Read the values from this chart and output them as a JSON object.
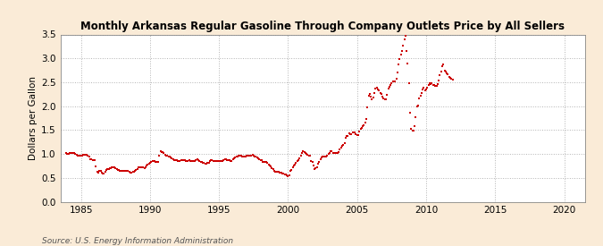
{
  "title": "Monthly Arkansas Regular Gasoline Through Company Outlets Price by All Sellers",
  "ylabel": "Dollars per Gallon",
  "source": "Source: U.S. Energy Information Administration",
  "background_color": "#faebd7",
  "plot_background": "#ffffff",
  "marker_color": "#cc0000",
  "xlim": [
    1983.5,
    2021.5
  ],
  "ylim": [
    0.0,
    3.5
  ],
  "yticks": [
    0.0,
    0.5,
    1.0,
    1.5,
    2.0,
    2.5,
    3.0,
    3.5
  ],
  "xticks": [
    1985,
    1990,
    1995,
    2000,
    2005,
    2010,
    2015,
    2020
  ],
  "data": [
    [
      1983.917,
      1.019
    ],
    [
      1984.0,
      1.009
    ],
    [
      1984.083,
      1.01
    ],
    [
      1984.167,
      1.014
    ],
    [
      1984.25,
      1.018
    ],
    [
      1984.333,
      1.025
    ],
    [
      1984.417,
      1.024
    ],
    [
      1984.5,
      1.013
    ],
    [
      1984.583,
      1.003
    ],
    [
      1984.667,
      0.983
    ],
    [
      1984.75,
      0.967
    ],
    [
      1984.833,
      0.963
    ],
    [
      1984.917,
      0.961
    ],
    [
      1985.0,
      0.961
    ],
    [
      1985.083,
      0.963
    ],
    [
      1985.167,
      0.975
    ],
    [
      1985.25,
      0.979
    ],
    [
      1985.333,
      0.981
    ],
    [
      1985.417,
      0.978
    ],
    [
      1985.5,
      0.967
    ],
    [
      1985.583,
      0.948
    ],
    [
      1985.667,
      0.898
    ],
    [
      1985.75,
      0.882
    ],
    [
      1985.833,
      0.876
    ],
    [
      1985.917,
      0.876
    ],
    [
      1986.0,
      0.862
    ],
    [
      1986.083,
      0.742
    ],
    [
      1986.167,
      0.62
    ],
    [
      1986.25,
      0.607
    ],
    [
      1986.333,
      0.645
    ],
    [
      1986.417,
      0.641
    ],
    [
      1986.5,
      0.605
    ],
    [
      1986.583,
      0.589
    ],
    [
      1986.667,
      0.596
    ],
    [
      1986.75,
      0.627
    ],
    [
      1986.833,
      0.657
    ],
    [
      1986.917,
      0.675
    ],
    [
      1987.0,
      0.682
    ],
    [
      1987.083,
      0.693
    ],
    [
      1987.167,
      0.704
    ],
    [
      1987.25,
      0.716
    ],
    [
      1987.333,
      0.728
    ],
    [
      1987.417,
      0.724
    ],
    [
      1987.5,
      0.694
    ],
    [
      1987.583,
      0.677
    ],
    [
      1987.667,
      0.673
    ],
    [
      1987.75,
      0.662
    ],
    [
      1987.833,
      0.649
    ],
    [
      1987.917,
      0.647
    ],
    [
      1988.0,
      0.648
    ],
    [
      1988.083,
      0.654
    ],
    [
      1988.167,
      0.655
    ],
    [
      1988.25,
      0.65
    ],
    [
      1988.333,
      0.645
    ],
    [
      1988.417,
      0.637
    ],
    [
      1988.5,
      0.618
    ],
    [
      1988.583,
      0.608
    ],
    [
      1988.667,
      0.605
    ],
    [
      1988.75,
      0.619
    ],
    [
      1988.833,
      0.627
    ],
    [
      1988.917,
      0.637
    ],
    [
      1989.0,
      0.659
    ],
    [
      1989.083,
      0.686
    ],
    [
      1989.167,
      0.713
    ],
    [
      1989.25,
      0.718
    ],
    [
      1989.333,
      0.712
    ],
    [
      1989.417,
      0.724
    ],
    [
      1989.5,
      0.712
    ],
    [
      1989.583,
      0.71
    ],
    [
      1989.667,
      0.726
    ],
    [
      1989.75,
      0.749
    ],
    [
      1989.833,
      0.779
    ],
    [
      1989.917,
      0.796
    ],
    [
      1990.0,
      0.812
    ],
    [
      1990.083,
      0.832
    ],
    [
      1990.167,
      0.848
    ],
    [
      1990.25,
      0.853
    ],
    [
      1990.333,
      0.844
    ],
    [
      1990.417,
      0.838
    ],
    [
      1990.5,
      0.83
    ],
    [
      1990.583,
      0.832
    ],
    [
      1990.667,
      0.964
    ],
    [
      1990.75,
      1.052
    ],
    [
      1990.833,
      1.04
    ],
    [
      1990.917,
      1.035
    ],
    [
      1991.0,
      1.016
    ],
    [
      1991.083,
      0.983
    ],
    [
      1991.167,
      0.97
    ],
    [
      1991.25,
      0.962
    ],
    [
      1991.333,
      0.951
    ],
    [
      1991.417,
      0.946
    ],
    [
      1991.5,
      0.918
    ],
    [
      1991.583,
      0.899
    ],
    [
      1991.667,
      0.884
    ],
    [
      1991.75,
      0.876
    ],
    [
      1991.833,
      0.874
    ],
    [
      1991.917,
      0.866
    ],
    [
      1992.0,
      0.858
    ],
    [
      1992.083,
      0.854
    ],
    [
      1992.167,
      0.856
    ],
    [
      1992.25,
      0.861
    ],
    [
      1992.333,
      0.863
    ],
    [
      1992.417,
      0.872
    ],
    [
      1992.5,
      0.866
    ],
    [
      1992.583,
      0.854
    ],
    [
      1992.667,
      0.848
    ],
    [
      1992.75,
      0.853
    ],
    [
      1992.833,
      0.861
    ],
    [
      1992.917,
      0.856
    ],
    [
      1993.0,
      0.856
    ],
    [
      1993.083,
      0.857
    ],
    [
      1993.167,
      0.856
    ],
    [
      1993.25,
      0.857
    ],
    [
      1993.333,
      0.867
    ],
    [
      1993.417,
      0.885
    ],
    [
      1993.5,
      0.878
    ],
    [
      1993.583,
      0.854
    ],
    [
      1993.667,
      0.838
    ],
    [
      1993.75,
      0.824
    ],
    [
      1993.833,
      0.816
    ],
    [
      1993.917,
      0.806
    ],
    [
      1994.0,
      0.798
    ],
    [
      1994.083,
      0.799
    ],
    [
      1994.167,
      0.812
    ],
    [
      1994.25,
      0.822
    ],
    [
      1994.333,
      0.846
    ],
    [
      1994.417,
      0.872
    ],
    [
      1994.5,
      0.869
    ],
    [
      1994.583,
      0.854
    ],
    [
      1994.667,
      0.846
    ],
    [
      1994.75,
      0.843
    ],
    [
      1994.833,
      0.843
    ],
    [
      1994.917,
      0.843
    ],
    [
      1995.0,
      0.844
    ],
    [
      1995.083,
      0.843
    ],
    [
      1995.167,
      0.844
    ],
    [
      1995.25,
      0.853
    ],
    [
      1995.333,
      0.879
    ],
    [
      1995.417,
      0.895
    ],
    [
      1995.5,
      0.891
    ],
    [
      1995.583,
      0.876
    ],
    [
      1995.667,
      0.872
    ],
    [
      1995.75,
      0.865
    ],
    [
      1995.833,
      0.86
    ],
    [
      1995.917,
      0.86
    ],
    [
      1996.0,
      0.88
    ],
    [
      1996.083,
      0.901
    ],
    [
      1996.167,
      0.93
    ],
    [
      1996.25,
      0.938
    ],
    [
      1996.333,
      0.948
    ],
    [
      1996.417,
      0.964
    ],
    [
      1996.5,
      0.96
    ],
    [
      1996.583,
      0.959
    ],
    [
      1996.667,
      0.95
    ],
    [
      1996.75,
      0.942
    ],
    [
      1996.833,
      0.945
    ],
    [
      1996.917,
      0.954
    ],
    [
      1997.0,
      0.957
    ],
    [
      1997.083,
      0.957
    ],
    [
      1997.167,
      0.963
    ],
    [
      1997.25,
      0.963
    ],
    [
      1997.333,
      0.971
    ],
    [
      1997.417,
      0.975
    ],
    [
      1997.5,
      0.96
    ],
    [
      1997.583,
      0.944
    ],
    [
      1997.667,
      0.938
    ],
    [
      1997.75,
      0.93
    ],
    [
      1997.833,
      0.913
    ],
    [
      1997.917,
      0.896
    ],
    [
      1998.0,
      0.878
    ],
    [
      1998.083,
      0.862
    ],
    [
      1998.167,
      0.842
    ],
    [
      1998.25,
      0.831
    ],
    [
      1998.333,
      0.83
    ],
    [
      1998.417,
      0.826
    ],
    [
      1998.5,
      0.809
    ],
    [
      1998.583,
      0.784
    ],
    [
      1998.667,
      0.758
    ],
    [
      1998.75,
      0.73
    ],
    [
      1998.833,
      0.704
    ],
    [
      1998.917,
      0.677
    ],
    [
      1999.0,
      0.654
    ],
    [
      1999.083,
      0.636
    ],
    [
      1999.167,
      0.63
    ],
    [
      1999.25,
      0.621
    ],
    [
      1999.333,
      0.618
    ],
    [
      1999.417,
      0.617
    ],
    [
      1999.5,
      0.603
    ],
    [
      1999.583,
      0.594
    ],
    [
      1999.667,
      0.593
    ],
    [
      1999.75,
      0.58
    ],
    [
      1999.833,
      0.574
    ],
    [
      1999.917,
      0.547
    ],
    [
      2000.0,
      0.535
    ],
    [
      2000.083,
      0.561
    ],
    [
      2000.167,
      0.641
    ],
    [
      2000.25,
      0.67
    ],
    [
      2000.333,
      0.715
    ],
    [
      2000.417,
      0.75
    ],
    [
      2000.5,
      0.773
    ],
    [
      2000.583,
      0.812
    ],
    [
      2000.667,
      0.849
    ],
    [
      2000.75,
      0.878
    ],
    [
      2000.833,
      0.914
    ],
    [
      2000.917,
      0.969
    ],
    [
      2001.0,
      1.022
    ],
    [
      2001.083,
      1.06
    ],
    [
      2001.167,
      1.041
    ],
    [
      2001.25,
      1.025
    ],
    [
      2001.333,
      0.997
    ],
    [
      2001.417,
      0.985
    ],
    [
      2001.5,
      0.966
    ],
    [
      2001.583,
      0.96
    ],
    [
      2001.667,
      0.852
    ],
    [
      2001.75,
      0.839
    ],
    [
      2001.833,
      0.757
    ],
    [
      2001.917,
      0.692
    ],
    [
      2002.0,
      0.698
    ],
    [
      2002.083,
      0.716
    ],
    [
      2002.167,
      0.789
    ],
    [
      2002.25,
      0.84
    ],
    [
      2002.333,
      0.888
    ],
    [
      2002.417,
      0.924
    ],
    [
      2002.5,
      0.942
    ],
    [
      2002.583,
      0.944
    ],
    [
      2002.667,
      0.944
    ],
    [
      2002.75,
      0.952
    ],
    [
      2002.833,
      0.971
    ],
    [
      2002.917,
      0.994
    ],
    [
      2003.0,
      1.016
    ],
    [
      2003.083,
      1.062
    ],
    [
      2003.167,
      1.052
    ],
    [
      2003.25,
      1.015
    ],
    [
      2003.333,
      1.013
    ],
    [
      2003.417,
      1.024
    ],
    [
      2003.5,
      1.029
    ],
    [
      2003.583,
      1.027
    ],
    [
      2003.667,
      1.04
    ],
    [
      2003.75,
      1.099
    ],
    [
      2003.833,
      1.139
    ],
    [
      2003.917,
      1.172
    ],
    [
      2004.0,
      1.197
    ],
    [
      2004.083,
      1.225
    ],
    [
      2004.167,
      1.341
    ],
    [
      2004.25,
      1.372
    ],
    [
      2004.333,
      1.383
    ],
    [
      2004.417,
      1.437
    ],
    [
      2004.5,
      1.418
    ],
    [
      2004.583,
      1.413
    ],
    [
      2004.667,
      1.443
    ],
    [
      2004.75,
      1.454
    ],
    [
      2004.833,
      1.453
    ],
    [
      2004.917,
      1.422
    ],
    [
      2005.0,
      1.391
    ],
    [
      2005.083,
      1.402
    ],
    [
      2005.167,
      1.477
    ],
    [
      2005.25,
      1.517
    ],
    [
      2005.333,
      1.547
    ],
    [
      2005.417,
      1.573
    ],
    [
      2005.5,
      1.595
    ],
    [
      2005.583,
      1.655
    ],
    [
      2005.667,
      1.727
    ],
    [
      2005.75,
      1.967
    ],
    [
      2005.833,
      2.213
    ],
    [
      2005.917,
      2.254
    ],
    [
      2006.0,
      2.192
    ],
    [
      2006.083,
      2.148
    ],
    [
      2006.167,
      2.174
    ],
    [
      2006.25,
      2.265
    ],
    [
      2006.333,
      2.369
    ],
    [
      2006.417,
      2.383
    ],
    [
      2006.5,
      2.354
    ],
    [
      2006.583,
      2.321
    ],
    [
      2006.667,
      2.28
    ],
    [
      2006.75,
      2.246
    ],
    [
      2006.833,
      2.19
    ],
    [
      2006.917,
      2.168
    ],
    [
      2007.0,
      2.147
    ],
    [
      2007.083,
      2.152
    ],
    [
      2007.167,
      2.234
    ],
    [
      2007.25,
      2.37
    ],
    [
      2007.333,
      2.411
    ],
    [
      2007.417,
      2.441
    ],
    [
      2007.5,
      2.48
    ],
    [
      2007.583,
      2.52
    ],
    [
      2007.667,
      2.519
    ],
    [
      2007.75,
      2.525
    ],
    [
      2007.833,
      2.566
    ],
    [
      2007.917,
      2.701
    ],
    [
      2008.0,
      2.864
    ],
    [
      2008.083,
      2.982
    ],
    [
      2008.167,
      3.073
    ],
    [
      2008.25,
      3.147
    ],
    [
      2008.333,
      3.259
    ],
    [
      2008.417,
      3.391
    ],
    [
      2008.5,
      3.471
    ],
    [
      2008.583,
      3.148
    ],
    [
      2008.667,
      2.897
    ],
    [
      2008.75,
      2.487
    ],
    [
      2008.833,
      1.854
    ],
    [
      2008.917,
      1.533
    ],
    [
      2009.0,
      1.487
    ],
    [
      2009.083,
      1.479
    ],
    [
      2009.167,
      1.576
    ],
    [
      2009.25,
      1.775
    ],
    [
      2009.333,
      1.993
    ],
    [
      2009.417,
      2.021
    ],
    [
      2009.5,
      2.155
    ],
    [
      2009.583,
      2.224
    ],
    [
      2009.667,
      2.268
    ],
    [
      2009.75,
      2.356
    ],
    [
      2009.833,
      2.391
    ],
    [
      2009.917,
      2.339
    ],
    [
      2010.0,
      2.358
    ],
    [
      2010.083,
      2.391
    ],
    [
      2010.167,
      2.447
    ],
    [
      2010.25,
      2.473
    ],
    [
      2010.333,
      2.469
    ],
    [
      2010.417,
      2.471
    ],
    [
      2010.5,
      2.447
    ],
    [
      2010.583,
      2.434
    ],
    [
      2010.667,
      2.416
    ],
    [
      2010.75,
      2.421
    ],
    [
      2010.833,
      2.461
    ],
    [
      2010.917,
      2.53
    ],
    [
      2011.0,
      2.642
    ],
    [
      2011.083,
      2.72
    ],
    [
      2011.167,
      2.843
    ],
    [
      2011.25,
      2.871
    ],
    [
      2011.333,
      2.745
    ],
    [
      2011.417,
      2.721
    ],
    [
      2011.5,
      2.69
    ],
    [
      2011.583,
      2.672
    ],
    [
      2011.667,
      2.618
    ],
    [
      2011.75,
      2.589
    ],
    [
      2011.833,
      2.568
    ],
    [
      2011.917,
      2.559
    ]
  ]
}
